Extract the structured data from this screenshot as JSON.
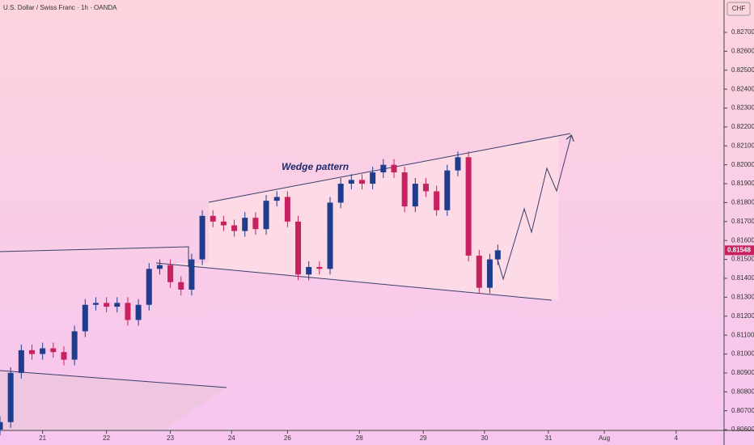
{
  "chart_data": {
    "type": "candlestick",
    "title": "U.S. Dollar / Swiss Franc · 1h · OANDA",
    "currency": "CHF",
    "annotation": "Wedge pattern",
    "x": [
      0,
      4,
      8,
      12,
      16,
      20,
      24,
      28,
      32,
      36,
      40,
      44,
      48,
      52,
      56,
      60,
      64,
      68,
      72,
      76,
      80,
      84,
      88,
      92,
      96,
      100,
      104,
      108,
      112,
      116,
      120,
      124,
      128,
      132,
      136,
      140,
      144,
      148,
      152,
      156,
      160,
      164,
      168,
      172,
      176,
      180,
      184,
      187
    ],
    "open": [
      0.806,
      0.8064,
      0.809,
      0.8102,
      0.81,
      0.8103,
      0.8101,
      0.8097,
      0.8112,
      0.8126,
      0.8127,
      0.8125,
      0.8127,
      0.8118,
      0.8126,
      0.8145,
      0.8147,
      0.8138,
      0.8134,
      0.815,
      0.8173,
      0.817,
      0.8168,
      0.8165,
      0.8172,
      0.8166,
      0.8181,
      0.8183,
      0.817,
      0.8142,
      0.8146,
      0.8145,
      0.818,
      0.819,
      0.8192,
      0.819,
      0.8196,
      0.82,
      0.8196,
      0.8178,
      0.819,
      0.8186,
      0.8176,
      0.8197,
      0.8204,
      0.8152,
      0.8135,
      0.815
    ],
    "high": [
      0.8067,
      0.8093,
      0.8105,
      0.8105,
      0.8106,
      0.8106,
      0.8104,
      0.8115,
      0.8129,
      0.813,
      0.813,
      0.813,
      0.813,
      0.8129,
      0.8148,
      0.815,
      0.815,
      0.8141,
      0.8153,
      0.8176,
      0.8176,
      0.8173,
      0.8171,
      0.8175,
      0.8175,
      0.8184,
      0.8186,
      0.8186,
      0.8173,
      0.8149,
      0.8149,
      0.8183,
      0.8193,
      0.8195,
      0.8195,
      0.8199,
      0.8203,
      0.8203,
      0.8199,
      0.8193,
      0.8193,
      0.8189,
      0.82,
      0.8207,
      0.8207,
      0.8155,
      0.8153,
      0.81578
    ],
    "low": [
      0.8057,
      0.8061,
      0.8087,
      0.8097,
      0.8097,
      0.8098,
      0.8094,
      0.8094,
      0.8109,
      0.8123,
      0.8122,
      0.8122,
      0.8115,
      0.8115,
      0.8123,
      0.8142,
      0.8135,
      0.8131,
      0.8131,
      0.8147,
      0.8167,
      0.8165,
      0.8162,
      0.8162,
      0.8163,
      0.8163,
      0.8178,
      0.8167,
      0.8139,
      0.8139,
      0.8142,
      0.8142,
      0.8177,
      0.8187,
      0.8187,
      0.8187,
      0.8193,
      0.8193,
      0.8175,
      0.8175,
      0.8183,
      0.8173,
      0.8173,
      0.8194,
      0.8149,
      0.8132,
      0.8132,
      0.8147
    ],
    "close": [
      0.8064,
      0.809,
      0.8102,
      0.81,
      0.8103,
      0.8101,
      0.8097,
      0.8112,
      0.8126,
      0.8127,
      0.8125,
      0.8127,
      0.8118,
      0.8126,
      0.8145,
      0.8147,
      0.8138,
      0.8134,
      0.815,
      0.8173,
      0.817,
      0.8168,
      0.8165,
      0.8172,
      0.8166,
      0.8181,
      0.8183,
      0.817,
      0.8142,
      0.8146,
      0.8145,
      0.818,
      0.819,
      0.8192,
      0.819,
      0.8196,
      0.82,
      0.8196,
      0.8178,
      0.819,
      0.8186,
      0.8176,
      0.8197,
      0.8204,
      0.8152,
      0.8135,
      0.815,
      0.81548
    ],
    "up_color": "#1f3d8c",
    "down_color": "#c8215f",
    "last_price": 0.81548,
    "xlim": [
      0,
      272
    ],
    "xticks": [
      {
        "value": 16,
        "label": "21"
      },
      {
        "value": 40,
        "label": "22"
      },
      {
        "value": 64,
        "label": "23"
      },
      {
        "value": 87,
        "label": "24"
      },
      {
        "value": 108,
        "label": "26"
      },
      {
        "value": 135,
        "label": "28"
      },
      {
        "value": 159,
        "label": "29"
      },
      {
        "value": 182,
        "label": "30"
      },
      {
        "value": 206,
        "label": "31"
      },
      {
        "value": 227,
        "label": "Aug"
      },
      {
        "value": 254,
        "label": "4"
      }
    ],
    "ylim": [
      0.80596,
      0.82871
    ],
    "yticks": [
      {
        "value": 0.827,
        "label": "0.82700"
      },
      {
        "value": 0.826,
        "label": "0.82600"
      },
      {
        "value": 0.825,
        "label": "0.82500"
      },
      {
        "value": 0.824,
        "label": "0.82400"
      },
      {
        "value": 0.823,
        "label": "0.82300"
      },
      {
        "value": 0.822,
        "label": "0.82200"
      },
      {
        "value": 0.821,
        "label": "0.82100"
      },
      {
        "value": 0.82,
        "label": "0.82000"
      },
      {
        "value": 0.819,
        "label": "0.81900"
      },
      {
        "value": 0.818,
        "label": "0.81800"
      },
      {
        "value": 0.817,
        "label": "0.81700"
      },
      {
        "value": 0.816,
        "label": "0.81600"
      },
      {
        "value": 0.815,
        "label": "0.81500"
      },
      {
        "value": 0.814,
        "label": "0.81400"
      },
      {
        "value": 0.813,
        "label": "0.81300"
      },
      {
        "value": 0.812,
        "label": "0.81200"
      },
      {
        "value": 0.811,
        "label": "0.81100"
      },
      {
        "value": 0.81,
        "label": "0.81000"
      },
      {
        "value": 0.809,
        "label": "0.80900"
      },
      {
        "value": 0.808,
        "label": "0.80800"
      },
      {
        "value": 0.807,
        "label": "0.80700"
      },
      {
        "value": 0.806,
        "label": "0.80600"
      }
    ]
  }
}
